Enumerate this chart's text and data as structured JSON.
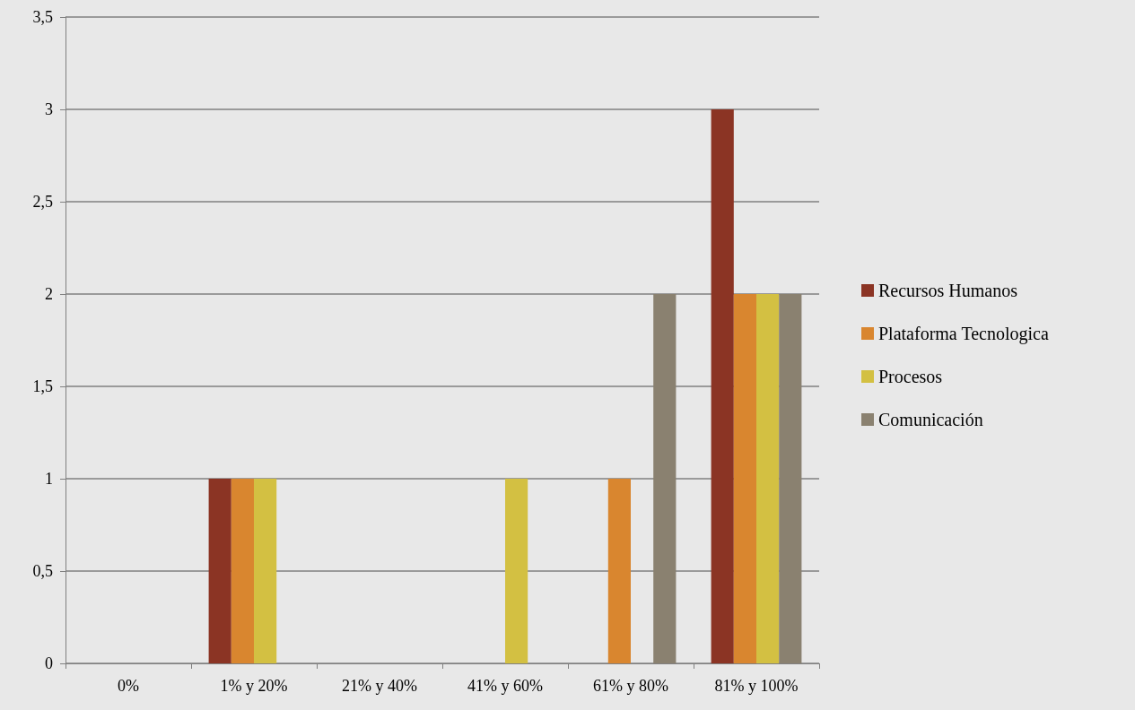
{
  "chart_data": {
    "type": "bar",
    "categories": [
      "0%",
      "1% y 20%",
      "21% y 40%",
      "41% y 60%",
      "61% y 80%",
      "81% y 100%"
    ],
    "series": [
      {
        "name": "Recursos Humanos",
        "color": "#8b3424",
        "values": [
          0,
          1,
          0,
          0,
          0,
          3
        ]
      },
      {
        "name": "Plataforma Tecnologica",
        "color": "#d9862f",
        "values": [
          0,
          1,
          0,
          0,
          1,
          2
        ]
      },
      {
        "name": "Procesos",
        "color": "#d3c042",
        "values": [
          0,
          1,
          0,
          1,
          0,
          2
        ]
      },
      {
        "name": "Comunicación",
        "color": "#8a8170",
        "values": [
          0,
          0,
          0,
          0,
          2,
          2
        ]
      }
    ],
    "ylim": [
      0,
      3.5
    ],
    "yticks": [
      0,
      {
        "value": 0.5,
        "label": "0,5"
      },
      1,
      {
        "value": 1.5,
        "label": "1,5"
      },
      2,
      {
        "value": 2.5,
        "label": "2,5"
      },
      3,
      {
        "value": 3.5,
        "label": "3,5"
      }
    ],
    "grid": "y",
    "legend": "right"
  }
}
